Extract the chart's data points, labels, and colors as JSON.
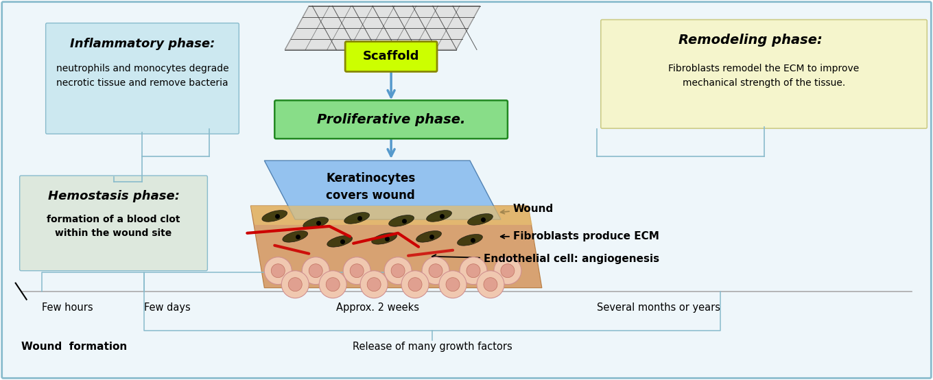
{
  "fig_width": 13.6,
  "fig_height": 5.54,
  "bg_color": "#ffffff",
  "outer_bg": "#ddeef5",
  "inflammatory_title": "Inflammatory phase:",
  "inflammatory_body": "neutrophils and monocytes degrade\nnecrotic tissue and remove bacteria",
  "inflammatory_box_color": "#cce8f0",
  "hemostasis_title": "Hemostasis phase:",
  "hemostasis_body": "formation of a blood clot\nwithin the wound site",
  "hemostasis_box_color": "#dde8dd",
  "remodeling_title": "Remodeling phase:",
  "remodeling_body": "Fibroblasts remodel the ECM to improve\nmechanical strength of the tissue.",
  "remodeling_box_color": "#f5f5cc",
  "scaffold_label": "Scaffold",
  "scaffold_box_color": "#ccff00",
  "proliferative_label": "Proliferative phase.",
  "proliferative_box_color": "#88dd88",
  "keratinocytes_label": "Keratinocytes\ncovers wound",
  "wound_label": "Wound",
  "fibroblasts_label": "Fibroblasts produce ECM",
  "endothelial_label": "Endothelial cell: angiogenesis",
  "timeline_labels": [
    "Few hours",
    "Few days",
    "Approx. 2 weeks",
    "Several months or years"
  ],
  "wound_formation": "Wound  formation",
  "release_label": "Release of many growth factors",
  "arrow_color": "#5599cc",
  "line_color": "#88bbcc"
}
